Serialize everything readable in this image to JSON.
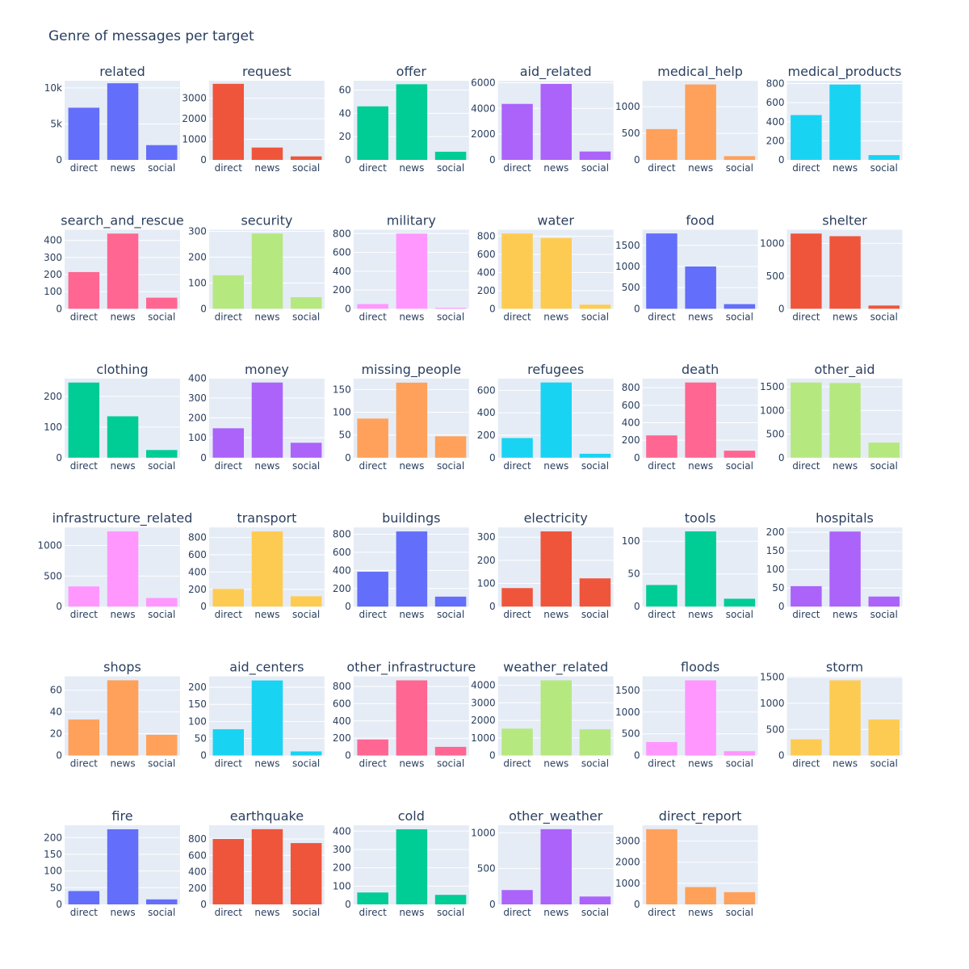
{
  "page": {
    "title": "Genre of messages per target"
  },
  "chart_data": {
    "type": "bar",
    "title": "Genre of messages per target",
    "categories": [
      "direct",
      "news",
      "social"
    ],
    "grid": "on",
    "legend": "none",
    "layout_rows": 6,
    "layout_cols": 6,
    "subplots": [
      {
        "name": "related",
        "values": [
          7250,
          10650,
          2050
        ],
        "ylim": [
          0,
          11000
        ],
        "yticks": [
          0,
          5000,
          10000
        ],
        "ytick_labels": [
          "0",
          "5k",
          "10k"
        ],
        "color": "#636efa"
      },
      {
        "name": "request",
        "values": [
          3700,
          600,
          170
        ],
        "ylim": [
          0,
          3850
        ],
        "yticks": [
          0,
          1000,
          2000,
          3000
        ],
        "ytick_labels": [
          "0",
          "1000",
          "2000",
          "3000"
        ],
        "color": "#ef553b"
      },
      {
        "name": "offer",
        "values": [
          46,
          65,
          7
        ],
        "ylim": [
          0,
          68
        ],
        "yticks": [
          0,
          20,
          40,
          60
        ],
        "ytick_labels": [
          "0",
          "20",
          "40",
          "60"
        ],
        "color": "#00cc96"
      },
      {
        "name": "aid_related",
        "values": [
          4350,
          5900,
          650
        ],
        "ylim": [
          0,
          6150
        ],
        "yticks": [
          0,
          2000,
          4000,
          6000
        ],
        "ytick_labels": [
          "0",
          "2000",
          "4000",
          "6000"
        ],
        "color": "#ab63fa"
      },
      {
        "name": "medical_help",
        "values": [
          580,
          1420,
          70
        ],
        "ylim": [
          0,
          1490
        ],
        "yticks": [
          0,
          500,
          1000
        ],
        "ytick_labels": [
          "0",
          "500",
          "1000"
        ],
        "color": "#ffa15a"
      },
      {
        "name": "medical_products",
        "values": [
          470,
          790,
          50
        ],
        "ylim": [
          0,
          830
        ],
        "yticks": [
          0,
          200,
          400,
          600,
          800
        ],
        "ytick_labels": [
          "0",
          "200",
          "400",
          "600",
          "800"
        ],
        "color": "#19d3f3"
      },
      {
        "name": "search_and_rescue",
        "values": [
          215,
          440,
          65
        ],
        "ylim": [
          0,
          463
        ],
        "yticks": [
          0,
          100,
          200,
          300,
          400
        ],
        "ytick_labels": [
          "0",
          "100",
          "200",
          "300",
          "400"
        ],
        "color": "#ff6692"
      },
      {
        "name": "security",
        "values": [
          130,
          292,
          45
        ],
        "ylim": [
          0,
          307
        ],
        "yticks": [
          0,
          100,
          200,
          300
        ],
        "ytick_labels": [
          "0",
          "100",
          "200",
          "300"
        ],
        "color": "#b6e880"
      },
      {
        "name": "military",
        "values": [
          50,
          800,
          10
        ],
        "ylim": [
          0,
          842
        ],
        "yticks": [
          0,
          200,
          400,
          600,
          800
        ],
        "ytick_labels": [
          "0",
          "200",
          "400",
          "600",
          "800"
        ],
        "color": "#ff97ff"
      },
      {
        "name": "water",
        "values": [
          830,
          780,
          45
        ],
        "ylim": [
          0,
          873
        ],
        "yticks": [
          0,
          200,
          400,
          600,
          800
        ],
        "ytick_labels": [
          "0",
          "200",
          "400",
          "600",
          "800"
        ],
        "color": "#fecb52"
      },
      {
        "name": "food",
        "values": [
          1780,
          1000,
          110
        ],
        "ylim": [
          0,
          1870
        ],
        "yticks": [
          0,
          500,
          1000,
          1500
        ],
        "ytick_labels": [
          "0",
          "500",
          "1000",
          "1500"
        ],
        "color": "#636efa"
      },
      {
        "name": "shelter",
        "values": [
          1150,
          1110,
          50
        ],
        "ylim": [
          0,
          1210
        ],
        "yticks": [
          0,
          500,
          1000
        ],
        "ytick_labels": [
          "0",
          "500",
          "1000"
        ],
        "color": "#ef553b"
      },
      {
        "name": "clothing",
        "values": [
          245,
          135,
          25
        ],
        "ylim": [
          0,
          258
        ],
        "yticks": [
          0,
          100,
          200
        ],
        "ytick_labels": [
          "0",
          "100",
          "200"
        ],
        "color": "#00cc96"
      },
      {
        "name": "money",
        "values": [
          148,
          378,
          75
        ],
        "ylim": [
          0,
          398
        ],
        "yticks": [
          0,
          100,
          200,
          300,
          400
        ],
        "ytick_labels": [
          "0",
          "100",
          "200",
          "300",
          "400"
        ],
        "color": "#ab63fa"
      },
      {
        "name": "missing_people",
        "values": [
          86,
          165,
          47
        ],
        "ylim": [
          0,
          174
        ],
        "yticks": [
          0,
          50,
          100,
          150
        ],
        "ytick_labels": [
          "0",
          "50",
          "100",
          "150"
        ],
        "color": "#ffa15a"
      },
      {
        "name": "refugees",
        "values": [
          175,
          670,
          35
        ],
        "ylim": [
          0,
          705
        ],
        "yticks": [
          0,
          200,
          400,
          600
        ],
        "ytick_labels": [
          "0",
          "200",
          "400",
          "600"
        ],
        "color": "#19d3f3"
      },
      {
        "name": "death",
        "values": [
          255,
          860,
          80
        ],
        "ylim": [
          0,
          905
        ],
        "yticks": [
          0,
          200,
          400,
          600,
          800
        ],
        "ytick_labels": [
          "0",
          "200",
          "400",
          "600",
          "800"
        ],
        "color": "#ff6692"
      },
      {
        "name": "other_aid",
        "values": [
          1590,
          1580,
          320
        ],
        "ylim": [
          0,
          1674
        ],
        "yticks": [
          0,
          500,
          1000,
          1500
        ],
        "ytick_labels": [
          "0",
          "500",
          "1000",
          "1500"
        ],
        "color": "#b6e880"
      },
      {
        "name": "infrastructure_related",
        "values": [
          330,
          1230,
          140
        ],
        "ylim": [
          0,
          1295
        ],
        "yticks": [
          0,
          500,
          1000
        ],
        "ytick_labels": [
          "0",
          "500",
          "1000"
        ],
        "color": "#ff97ff"
      },
      {
        "name": "transport",
        "values": [
          205,
          870,
          120
        ],
        "ylim": [
          0,
          916
        ],
        "yticks": [
          0,
          200,
          400,
          600,
          800
        ],
        "ytick_labels": [
          "0",
          "200",
          "400",
          "600",
          "800"
        ],
        "color": "#fecb52"
      },
      {
        "name": "buildings",
        "values": [
          385,
          830,
          110
        ],
        "ylim": [
          0,
          874
        ],
        "yticks": [
          0,
          200,
          400,
          600,
          800
        ],
        "ytick_labels": [
          "0",
          "200",
          "400",
          "600",
          "800"
        ],
        "color": "#636efa"
      },
      {
        "name": "electricity",
        "values": [
          80,
          325,
          122
        ],
        "ylim": [
          0,
          342
        ],
        "yticks": [
          0,
          100,
          200,
          300
        ],
        "ytick_labels": [
          "0",
          "100",
          "200",
          "300"
        ],
        "color": "#ef553b"
      },
      {
        "name": "tools",
        "values": [
          33,
          115,
          12
        ],
        "ylim": [
          0,
          121
        ],
        "yticks": [
          0,
          50,
          100
        ],
        "ytick_labels": [
          "0",
          "50",
          "100"
        ],
        "color": "#00cc96"
      },
      {
        "name": "hospitals",
        "values": [
          55,
          202,
          27
        ],
        "ylim": [
          0,
          213
        ],
        "yticks": [
          0,
          50,
          100,
          150,
          200
        ],
        "ytick_labels": [
          "0",
          "50",
          "100",
          "150",
          "200"
        ],
        "color": "#ab63fa"
      },
      {
        "name": "shops",
        "values": [
          33,
          69,
          19
        ],
        "ylim": [
          0,
          72.6
        ],
        "yticks": [
          0,
          20,
          40,
          60
        ],
        "ytick_labels": [
          "0",
          "20",
          "40",
          "60"
        ],
        "color": "#ffa15a"
      },
      {
        "name": "aid_centers",
        "values": [
          77,
          220,
          12
        ],
        "ylim": [
          0,
          232
        ],
        "yticks": [
          0,
          50,
          100,
          150,
          200
        ],
        "ytick_labels": [
          "0",
          "50",
          "100",
          "150",
          "200"
        ],
        "color": "#19d3f3"
      },
      {
        "name": "other_infrastructure",
        "values": [
          185,
          870,
          100
        ],
        "ylim": [
          0,
          916
        ],
        "yticks": [
          0,
          200,
          400,
          600,
          800
        ],
        "ytick_labels": [
          "0",
          "200",
          "400",
          "600",
          "800"
        ],
        "color": "#ff6692"
      },
      {
        "name": "weather_related",
        "values": [
          1530,
          4280,
          1490
        ],
        "ylim": [
          0,
          4505
        ],
        "yticks": [
          0,
          1000,
          2000,
          3000,
          4000
        ],
        "ytick_labels": [
          "0",
          "1000",
          "2000",
          "3000",
          "4000"
        ],
        "color": "#b6e880"
      },
      {
        "name": "floods",
        "values": [
          310,
          1730,
          100
        ],
        "ylim": [
          0,
          1821
        ],
        "yticks": [
          0,
          500,
          1000,
          1500
        ],
        "ytick_labels": [
          "0",
          "500",
          "1000",
          "1500"
        ],
        "color": "#ff97ff"
      },
      {
        "name": "storm",
        "values": [
          310,
          1440,
          690
        ],
        "ylim": [
          0,
          1516
        ],
        "yticks": [
          0,
          500,
          1000,
          1500
        ],
        "ytick_labels": [
          "0",
          "500",
          "1000",
          "1500"
        ],
        "color": "#fecb52"
      },
      {
        "name": "fire",
        "values": [
          40,
          225,
          15
        ],
        "ylim": [
          0,
          237
        ],
        "yticks": [
          0,
          50,
          100,
          150,
          200
        ],
        "ytick_labels": [
          "0",
          "50",
          "100",
          "150",
          "200"
        ],
        "color": "#636efa"
      },
      {
        "name": "earthquake",
        "values": [
          800,
          920,
          750
        ],
        "ylim": [
          0,
          968
        ],
        "yticks": [
          0,
          200,
          400,
          600,
          800
        ],
        "ytick_labels": [
          "0",
          "200",
          "400",
          "600",
          "800"
        ],
        "color": "#ef553b"
      },
      {
        "name": "cold",
        "values": [
          65,
          410,
          52
        ],
        "ylim": [
          0,
          432
        ],
        "yticks": [
          0,
          100,
          200,
          300,
          400
        ],
        "ytick_labels": [
          "0",
          "100",
          "200",
          "300",
          "400"
        ],
        "color": "#00cc96"
      },
      {
        "name": "other_weather",
        "values": [
          200,
          1050,
          110
        ],
        "ylim": [
          0,
          1105
        ],
        "yticks": [
          0,
          500,
          1000
        ],
        "ytick_labels": [
          "0",
          "500",
          "1000"
        ],
        "color": "#ab63fa"
      },
      {
        "name": "direct_report",
        "values": [
          3560,
          820,
          580
        ],
        "ylim": [
          0,
          3747
        ],
        "yticks": [
          0,
          1000,
          2000,
          3000
        ],
        "ytick_labels": [
          "0",
          "1000",
          "2000",
          "3000"
        ],
        "color": "#ffa15a"
      }
    ]
  }
}
